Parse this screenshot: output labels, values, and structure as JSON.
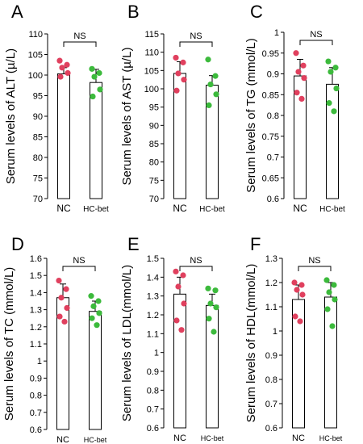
{
  "series_colors": {
    "NC": "#e0405e",
    "HC-bet": "#3cba3c"
  },
  "chart_data": [
    {
      "type": "bar",
      "panel": "A",
      "ylabel": "Serum levels of ALT (µ/L)",
      "categories": [
        "NC",
        "HC-bet"
      ],
      "ylim": [
        70,
        110
      ],
      "yticks": [
        70,
        75,
        80,
        85,
        90,
        95,
        100,
        105,
        110
      ],
      "values": [
        100.3,
        98.2
      ],
      "errors": [
        1.5,
        3.2
      ],
      "annotation": "NS",
      "points": [
        [
          103.5,
          102.5,
          101.8,
          100.5,
          99.6
        ],
        [
          101.5,
          100.5,
          99.6,
          96.5,
          94.8
        ]
      ]
    },
    {
      "type": "bar",
      "panel": "B",
      "ylabel": "Serum levels of AST (µ/L)",
      "categories": [
        "NC",
        "HC-bet"
      ],
      "ylim": [
        70,
        115
      ],
      "yticks": [
        70,
        75,
        80,
        85,
        90,
        95,
        100,
        105,
        110,
        115
      ],
      "values": [
        104.2,
        101.0
      ],
      "errors": [
        3.2,
        2.6
      ],
      "annotation": "NS",
      "points": [
        [
          108.5,
          107.2,
          104.2,
          102.5,
          99.5
        ],
        [
          108.0,
          103.5,
          101.2,
          98.5,
          95.5
        ]
      ]
    },
    {
      "type": "bar",
      "panel": "C",
      "ylabel": "Serum levels of TG (mmol/L)",
      "categories": [
        "NC",
        "HC-bet"
      ],
      "ylim": [
        0.6,
        1.0
      ],
      "yticks": [
        0.6,
        0.65,
        0.7,
        0.75,
        0.8,
        0.85,
        0.9,
        0.95,
        1
      ],
      "values": [
        0.895,
        0.875
      ],
      "errors": [
        0.04,
        0.04
      ],
      "annotation": "NS",
      "points": [
        [
          0.95,
          0.92,
          0.905,
          0.89,
          0.855,
          0.84
        ],
        [
          0.93,
          0.915,
          0.905,
          0.865,
          0.83,
          0.81
        ]
      ]
    },
    {
      "type": "bar",
      "panel": "D",
      "ylabel": "Serum levels of TC (mmol/L)",
      "categories": [
        "NC",
        "HC-bet"
      ],
      "ylim": [
        0.6,
        1.6
      ],
      "yticks": [
        0.6,
        0.7,
        0.8,
        0.9,
        1,
        1.1,
        1.2,
        1.3,
        1.4,
        1.5,
        1.6
      ],
      "values": [
        1.37,
        1.29
      ],
      "errors": [
        0.08,
        0.06
      ],
      "annotation": "NS",
      "points": [
        [
          1.47,
          1.42,
          1.37,
          1.31,
          1.26,
          1.23
        ],
        [
          1.38,
          1.35,
          1.32,
          1.28,
          1.25,
          1.21
        ]
      ]
    },
    {
      "type": "bar",
      "panel": "E",
      "ylabel": "Serum levels of LDL(mmol/L)",
      "categories": [
        "NC",
        "HC-bet"
      ],
      "ylim": [
        0.6,
        1.5
      ],
      "yticks": [
        0.6,
        0.7,
        0.8,
        0.9,
        1,
        1.1,
        1.2,
        1.3,
        1.4,
        1.5
      ],
      "values": [
        1.31,
        1.25
      ],
      "errors": [
        0.09,
        0.06
      ],
      "annotation": "NS",
      "points": [
        [
          1.43,
          1.41,
          1.35,
          1.26,
          1.17,
          1.12
        ],
        [
          1.34,
          1.33,
          1.26,
          1.24,
          1.18,
          1.11
        ]
      ]
    },
    {
      "type": "bar",
      "panel": "F",
      "ylabel": "Serum levels of HDL(mmol/L)",
      "categories": [
        "NC",
        "HC-bet"
      ],
      "ylim": [
        0.6,
        1.3
      ],
      "yticks": [
        0.6,
        0.7,
        0.8,
        0.9,
        1,
        1.1,
        1.2,
        1.3
      ],
      "values": [
        1.13,
        1.14
      ],
      "errors": [
        0.06,
        0.06
      ],
      "annotation": "NS",
      "points": [
        [
          1.2,
          1.19,
          1.17,
          1.15,
          1.06,
          1.04
        ],
        [
          1.21,
          1.19,
          1.16,
          1.13,
          1.09,
          1.02
        ]
      ]
    }
  ]
}
